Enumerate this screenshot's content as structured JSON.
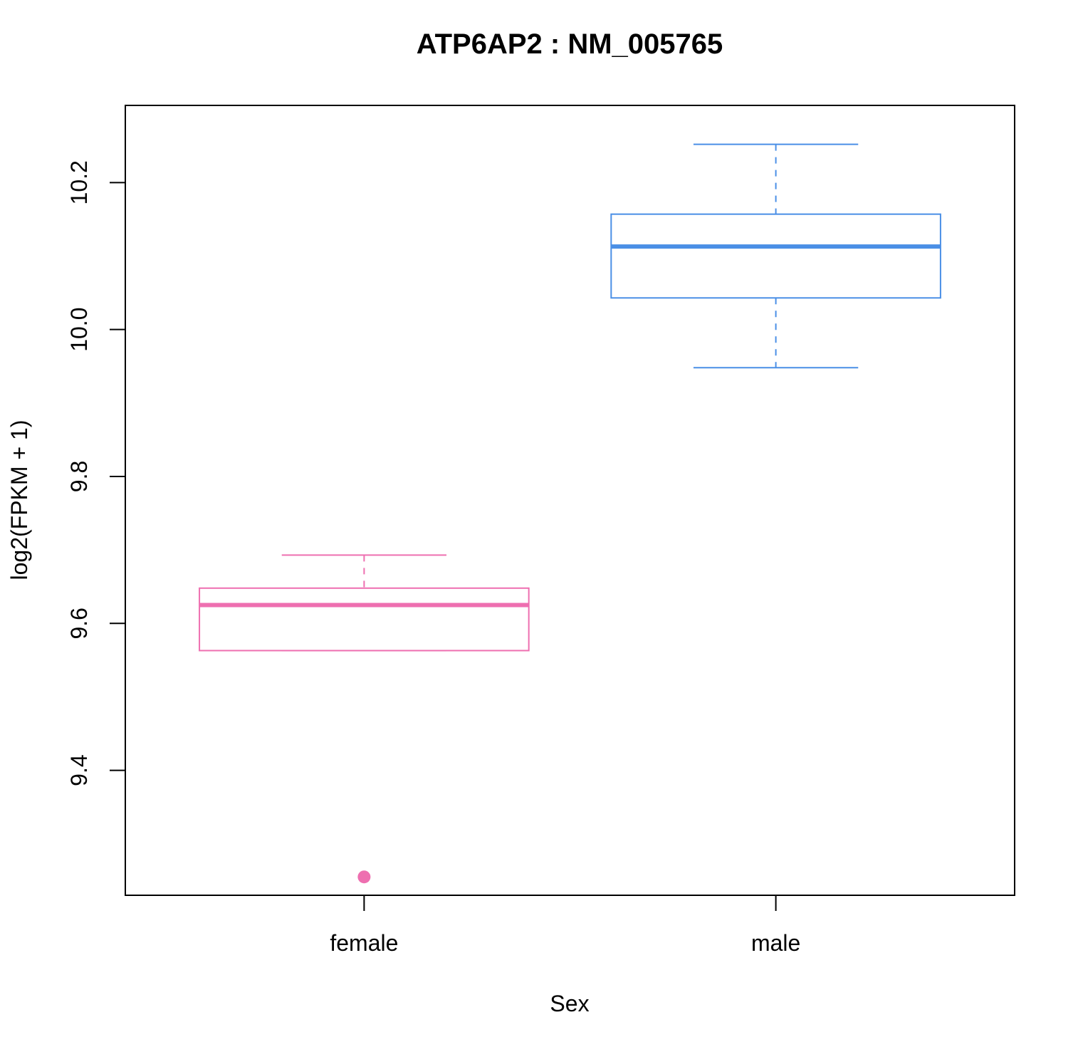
{
  "chart_data": {
    "type": "boxplot",
    "title": "ATP6AP2  :  NM_005765",
    "xlabel": "Sex",
    "ylabel": "log2(FPKM + 1)",
    "categories": [
      "female",
      "male"
    ],
    "ylim": [
      9.23,
      10.305
    ],
    "yticks": [
      9.4,
      9.6,
      9.8,
      10.0,
      10.2
    ],
    "ytick_labels": [
      "9.4",
      "9.6",
      "9.8",
      "10.0",
      "10.2"
    ],
    "boxes": [
      {
        "category": "female",
        "color": "#ee6fb0",
        "whisker_low": 9.563,
        "q1": 9.563,
        "median": 9.625,
        "q3": 9.648,
        "whisker_high": 9.693,
        "outliers": [
          9.255
        ]
      },
      {
        "category": "male",
        "color": "#4a8fe6",
        "whisker_low": 9.948,
        "q1": 10.043,
        "median": 10.113,
        "q3": 10.157,
        "whisker_high": 10.252,
        "outliers": []
      }
    ],
    "grid": false,
    "legend": "none"
  }
}
